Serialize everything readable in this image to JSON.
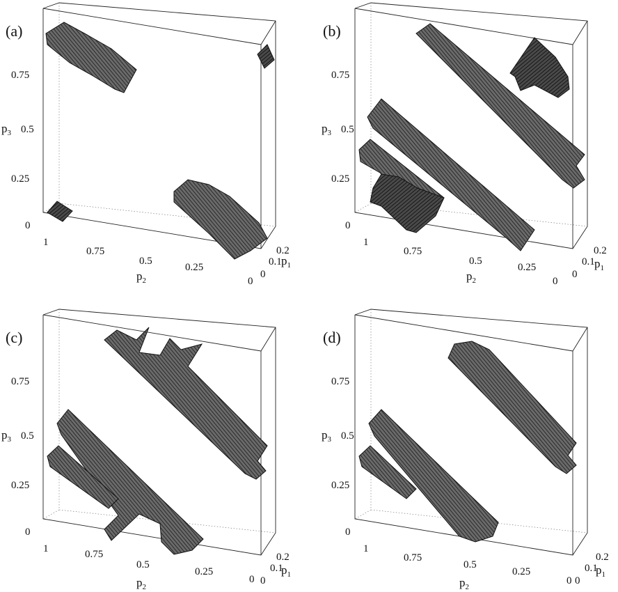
{
  "figure": {
    "panels": [
      {
        "id": "a",
        "label": "(a)",
        "y_axis": {
          "name_main": "p",
          "name_sub": "3",
          "ticks": [
            "0.75",
            "0.5",
            "0.25",
            "0"
          ]
        },
        "x_axis": {
          "name_main": "p",
          "name_sub": "2",
          "ticks": [
            "1",
            "0.75",
            "0.5",
            "0.25",
            "0"
          ]
        },
        "z_axis": {
          "name_main": "p",
          "name_sub": "1",
          "ticks": [
            "0.2",
            "0.1",
            "0"
          ]
        }
      },
      {
        "id": "b",
        "label": "(b)",
        "y_axis": {
          "name_main": "p",
          "name_sub": "3",
          "ticks": [
            "0.75",
            "0.5",
            "0.25",
            "0"
          ]
        },
        "x_axis": {
          "name_main": "p",
          "name_sub": "2",
          "ticks": [
            "1",
            "0.75",
            "0.5",
            "0.25",
            "0"
          ]
        },
        "z_axis": {
          "name_main": "p",
          "name_sub": "1",
          "ticks": [
            "0.2",
            "0.1",
            "0"
          ]
        }
      },
      {
        "id": "c",
        "label": "(c)",
        "y_axis": {
          "name_main": "p",
          "name_sub": "3",
          "ticks": [
            "0.75",
            "0.5",
            "0.25",
            "0"
          ]
        },
        "x_axis": {
          "name_main": "p",
          "name_sub": "2",
          "ticks": [
            "1",
            "0.75",
            "0.5",
            "0.25",
            "0"
          ]
        },
        "z_axis": {
          "name_main": "p",
          "name_sub": "1",
          "ticks": [
            "0.2",
            "0.1",
            "0"
          ]
        }
      },
      {
        "id": "d",
        "label": "(d)",
        "y_axis": {
          "name_main": "p",
          "name_sub": "3",
          "ticks": [
            "0.75",
            "0.5",
            "0.25",
            "0"
          ]
        },
        "x_axis": {
          "name_main": "p",
          "name_sub": "2",
          "ticks": [
            "1",
            "0.75",
            "0.5",
            "0.25",
            "0"
          ]
        },
        "z_axis": {
          "name_main": "p",
          "name_sub": "1",
          "ticks": [
            "0.2",
            "0.1",
            "0"
          ]
        }
      }
    ],
    "colors": {
      "surface": "#3a3a3a",
      "box": "#222222",
      "background": "#ffffff"
    }
  }
}
